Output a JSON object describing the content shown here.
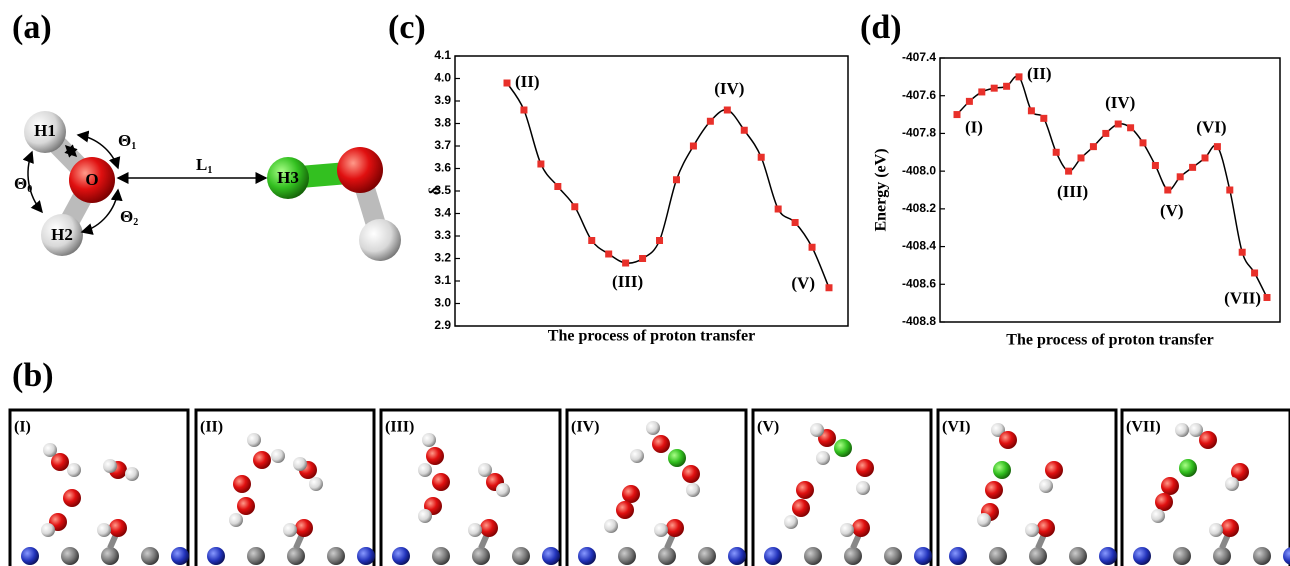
{
  "panels": {
    "a": "(a)",
    "b": "(b)",
    "c": "(c)",
    "d": "(d)"
  },
  "molecule": {
    "atoms": [
      "H1",
      "O",
      "H2",
      "H3"
    ],
    "angles": [
      {
        "symbol": "Θ",
        "sub": "0"
      },
      {
        "symbol": "Θ",
        "sub": "1"
      },
      {
        "symbol": "Θ",
        "sub": "2"
      }
    ],
    "distance": {
      "symbol": "L",
      "sub": "1"
    }
  },
  "snapshots": [
    "(I)",
    "(II)",
    "(III)",
    "(IV)",
    "(V)",
    "(VI)",
    "(VII)"
  ],
  "chart_data": [
    {
      "type": "line",
      "ylabel": "δ",
      "xlabel": "The process of proton transfer",
      "categories": [
        null,
        null,
        null,
        null,
        null,
        null,
        null,
        null,
        null,
        null,
        null,
        null,
        null,
        null,
        null,
        null,
        null,
        null,
        null,
        null
      ],
      "values": [
        3.98,
        3.86,
        3.62,
        3.52,
        3.43,
        3.28,
        3.22,
        3.18,
        3.2,
        3.28,
        3.55,
        3.7,
        3.81,
        3.86,
        3.77,
        3.65,
        3.42,
        3.36,
        3.25,
        3.07
      ],
      "color": "#e8302a",
      "line_color": "#000000",
      "ylim": [
        2.9,
        4.1
      ],
      "yticks": [
        2.9,
        {
          "value": 3,
          "label": "3.0"
        },
        3.1,
        3.2,
        3.3,
        3.4,
        3.5,
        3.6,
        3.7,
        3.8,
        3.9,
        {
          "value": 4,
          "label": "4.0"
        },
        4.1
      ],
      "annotations": [
        "(II)",
        "(III)",
        "(IV)",
        "(V)"
      ]
    },
    {
      "type": "line",
      "ylabel": "Energy (eV)",
      "xlabel": "The process of proton transfer",
      "categories": [
        null,
        null,
        null,
        null,
        null,
        null,
        null,
        null,
        null,
        null,
        null,
        null,
        null,
        null,
        null,
        null,
        null,
        null,
        null,
        null,
        null,
        null,
        null,
        null,
        null,
        null
      ],
      "values": [
        -407.7,
        -407.63,
        -407.58,
        -407.56,
        -407.55,
        -407.5,
        -407.68,
        -407.72,
        -407.9,
        -408.0,
        -407.93,
        -407.87,
        -407.8,
        -407.75,
        -407.77,
        -407.85,
        -407.97,
        -408.1,
        -408.03,
        -407.98,
        -407.93,
        -407.87,
        -408.1,
        -408.43,
        -408.54,
        -408.67
      ],
      "color": "#e8302a",
      "line_color": "#000000",
      "ylim": [
        -408.8,
        -407.4
      ],
      "yticks": [
        -408.8,
        -408.6,
        -408.4,
        -408.2,
        {
          "value": -408,
          "label": "-408.0"
        },
        -407.8,
        -407.6,
        -407.4
      ],
      "annotations": [
        "(I)",
        "(II)",
        "(III)",
        "(IV)",
        "(V)",
        "(VI)",
        "(VII)"
      ]
    }
  ]
}
